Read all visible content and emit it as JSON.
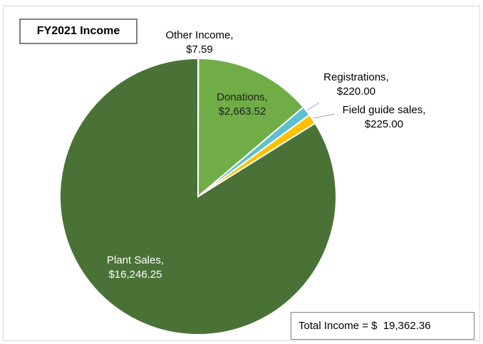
{
  "chart_data": {
    "type": "pie",
    "title": "FY2021 Income",
    "total_label": "Total Income =",
    "total_currency": "$",
    "total_value": "19,362.36",
    "start_angle_deg": 0,
    "slices": [
      {
        "label": "Other Income,",
        "value_label": "$7.59",
        "value": 7.59,
        "color": "#4a7237"
      },
      {
        "label": "Donations,",
        "value_label": "$2,663.52",
        "value": 2663.52,
        "color": "#70ad47"
      },
      {
        "label": "Registrations,",
        "value_label": "$220.00",
        "value": 220.0,
        "color": "#5bc0cf"
      },
      {
        "label": "Field guide sales,",
        "value_label": "$225.00",
        "value": 225.0,
        "color": "#ffc000"
      },
      {
        "label": "Plant Sales,",
        "value_label": "$16,246.25",
        "value": 16246.25,
        "color": "#4a7237"
      }
    ]
  }
}
